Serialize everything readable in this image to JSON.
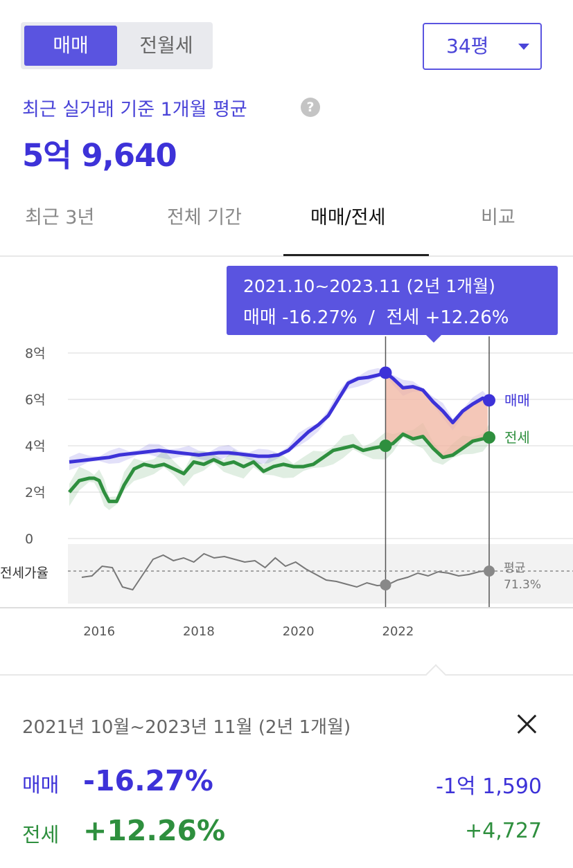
{
  "trade_toggle": {
    "options": [
      "매매",
      "전월세"
    ],
    "selected": "매매"
  },
  "size_select": {
    "value": "34평"
  },
  "summary_head": {
    "caption": "최근 실거래 기준 1개월 평균",
    "price": "5억 9,640"
  },
  "tabs": [
    "최근 3년",
    "전체 기간",
    "매매/전세",
    "비교"
  ],
  "active_tab": "매매/전세",
  "tooltip": {
    "period": "2021.10~2023.11 (2년 1개월)",
    "trade_label": "매매",
    "trade_change": "-16.27%",
    "separator": "/",
    "jeonse_label": "전세",
    "jeonse_change": "+12.26%"
  },
  "colors": {
    "accent": "#4a44d8",
    "trade": "#3d32d8",
    "jeonse": "#2e8f3e",
    "range_fill": "#f0b4a0",
    "tooltip_bg": "#5a54e0"
  },
  "chart_data": {
    "type": "line",
    "x_ticks": [
      "2016",
      "2018",
      "2020",
      "2022"
    ],
    "y_ticks": [
      "8억",
      "6억",
      "4억",
      "2억",
      "0"
    ],
    "ylim": [
      0,
      8
    ],
    "y_unit": "억",
    "series": [
      {
        "name": "매매",
        "x": [
          2015.4,
          2015.6,
          2015.8,
          2016.0,
          2016.2,
          2016.4,
          2016.6,
          2016.8,
          2017.0,
          2017.2,
          2017.4,
          2017.6,
          2017.8,
          2018.0,
          2018.2,
          2018.4,
          2018.6,
          2018.8,
          2019.0,
          2019.2,
          2019.4,
          2019.6,
          2019.8,
          2020.0,
          2020.2,
          2020.4,
          2020.6,
          2020.8,
          2021.0,
          2021.2,
          2021.4,
          2021.6,
          2021.75,
          2021.9,
          2022.1,
          2022.3,
          2022.5,
          2022.7,
          2022.9,
          2023.1,
          2023.3,
          2023.5,
          2023.7,
          2023.83
        ],
        "y": [
          3.3,
          3.35,
          3.4,
          3.45,
          3.5,
          3.6,
          3.65,
          3.7,
          3.75,
          3.8,
          3.75,
          3.7,
          3.65,
          3.6,
          3.65,
          3.7,
          3.7,
          3.65,
          3.6,
          3.55,
          3.55,
          3.6,
          3.8,
          4.2,
          4.6,
          4.9,
          5.3,
          6.0,
          6.7,
          6.9,
          6.95,
          7.05,
          7.15,
          6.9,
          6.5,
          6.55,
          6.4,
          5.9,
          5.5,
          5.0,
          5.5,
          5.8,
          6.05,
          5.96
        ]
      },
      {
        "name": "전세",
        "x": [
          2015.4,
          2015.6,
          2015.8,
          2015.9,
          2016.0,
          2016.1,
          2016.2,
          2016.35,
          2016.5,
          2016.7,
          2016.9,
          2017.1,
          2017.3,
          2017.5,
          2017.7,
          2017.9,
          2018.1,
          2018.3,
          2018.5,
          2018.7,
          2018.9,
          2019.1,
          2019.3,
          2019.5,
          2019.7,
          2019.9,
          2020.1,
          2020.3,
          2020.5,
          2020.7,
          2020.9,
          2021.1,
          2021.3,
          2021.5,
          2021.75,
          2021.9,
          2022.1,
          2022.3,
          2022.5,
          2022.7,
          2022.9,
          2023.1,
          2023.3,
          2023.5,
          2023.7,
          2023.83
        ],
        "y": [
          2.0,
          2.5,
          2.6,
          2.6,
          2.5,
          2.0,
          1.6,
          1.6,
          2.3,
          3.0,
          3.2,
          3.1,
          3.2,
          3.0,
          2.8,
          3.3,
          3.2,
          3.4,
          3.2,
          3.3,
          3.1,
          3.3,
          2.9,
          3.1,
          3.2,
          3.1,
          3.1,
          3.2,
          3.5,
          3.8,
          3.9,
          4.0,
          3.8,
          3.9,
          4.0,
          4.1,
          4.5,
          4.3,
          4.4,
          3.9,
          3.5,
          3.6,
          3.9,
          4.2,
          4.3,
          4.36
        ]
      }
    ],
    "ratio_series": {
      "name": "전세가율",
      "average_label": "평균",
      "average_value": "71.3%"
    },
    "selected_range": {
      "start": "2021.10",
      "end": "2023.11"
    },
    "series_labels": [
      "매매",
      "전세"
    ],
    "grid": true
  },
  "summary": {
    "period": "2021년 10월~2023년 11월 (2년 1개월)",
    "trade": {
      "label": "매매",
      "pct": "-16.27%",
      "abs": "-1억 1,590"
    },
    "jeonse": {
      "label": "전세",
      "pct": "+12.26%",
      "abs": "+4,727"
    }
  }
}
